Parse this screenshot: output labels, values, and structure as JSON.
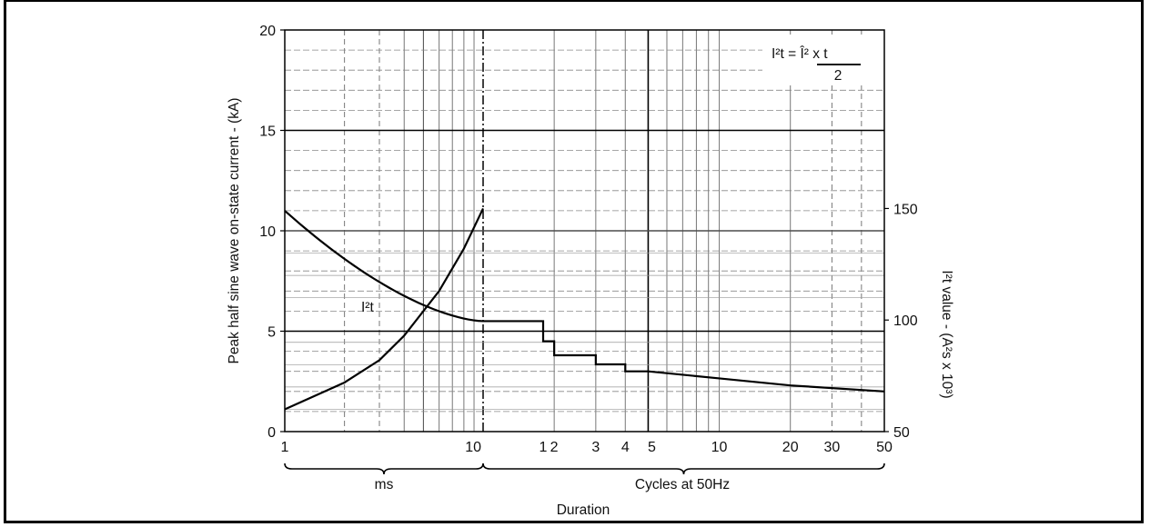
{
  "chart_data": {
    "type": "line",
    "xlabel": "Duration",
    "ylabel_left": "Peak half sine wave on-state current - (kA)",
    "ylabel_right": "I²t value - (A²s x 10³)",
    "formula": {
      "lhs": "I²t = Î² x t",
      "denominator": "2"
    },
    "x_scale": "log, two segments: 1–10 ms, then 1–50 cycles at 50Hz",
    "x_tick_labels_ms": [
      "1",
      "10"
    ],
    "x_tick_labels_cycles": [
      "1",
      "2",
      "3",
      "4",
      "5",
      "10",
      "20",
      "30",
      "50"
    ],
    "segment_labels": {
      "ms": "ms",
      "cycles": "Cycles at 50Hz"
    },
    "y_left": {
      "ylim": [
        0,
        20
      ],
      "ticks": [
        "0",
        "5",
        "10",
        "15",
        "20"
      ]
    },
    "y_right": {
      "ylim": [
        50,
        230
      ],
      "ticks": [
        "50",
        "100",
        "150"
      ]
    },
    "grid": true,
    "series": [
      {
        "name": "",
        "axis": "left",
        "unit": "kA",
        "points_ms": [
          [
            1,
            11.0
          ],
          [
            2,
            8.6
          ],
          [
            5,
            6.3
          ],
          [
            10,
            5.5
          ]
        ],
        "steps_cycles": [
          [
            1,
            5.5
          ],
          [
            2,
            4.5
          ],
          [
            3,
            3.8
          ],
          [
            4,
            3.35
          ],
          [
            5,
            3.0
          ]
        ],
        "points_cycles": [
          [
            5,
            3.0
          ],
          [
            10,
            2.65
          ],
          [
            20,
            2.3
          ],
          [
            50,
            2.0
          ]
        ]
      },
      {
        "name": "I²t",
        "axis": "right",
        "unit": "A²s x 10³",
        "points_ms": [
          [
            1,
            60
          ],
          [
            2,
            72
          ],
          [
            3,
            82
          ],
          [
            4,
            93
          ],
          [
            6,
            113
          ],
          [
            8,
            132
          ],
          [
            10,
            150
          ]
        ]
      }
    ]
  }
}
